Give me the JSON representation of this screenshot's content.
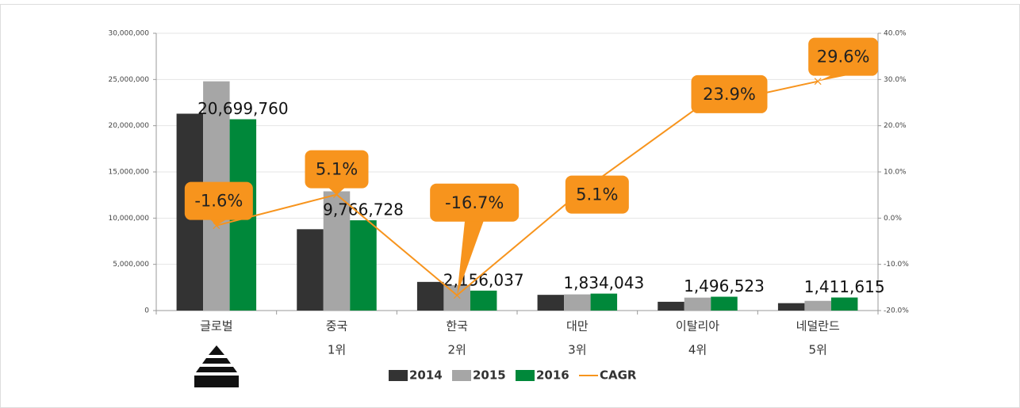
{
  "chart_data": {
    "type": "bar",
    "categories": [
      "글로벌",
      "중국",
      "한국",
      "대만",
      "이탈리아",
      "네덜란드"
    ],
    "ranks": [
      null,
      "1위",
      "2위",
      "3위",
      "4위",
      "5위"
    ],
    "series": [
      {
        "name": "2014",
        "color": "#333333",
        "values": [
          21300000,
          8800000,
          3100000,
          1700000,
          950000,
          800000
        ]
      },
      {
        "name": "2015",
        "color": "#a6a6a6",
        "values": [
          24800000,
          12900000,
          2750000,
          1750000,
          1400000,
          1050000
        ]
      },
      {
        "name": "2016",
        "color": "#00883a",
        "values": [
          20699760,
          9766728,
          2156037,
          1834043,
          1496523,
          1411615
        ],
        "value_labels": [
          "20,699,760",
          "9,766,728",
          "2,156,037",
          "1,834,043",
          "1,496,523",
          "1,411,615"
        ]
      },
      {
        "name": "CAGR",
        "type": "line",
        "axis": "y2",
        "color": "#f7941d",
        "values": [
          -1.6,
          5.1,
          -16.7,
          5.1,
          23.9,
          29.6
        ],
        "value_labels": [
          "-1.6%",
          "5.1%",
          "-16.7%",
          "5.1%",
          "23.9%",
          "29.6%"
        ]
      }
    ],
    "ylim": [
      0,
      30000000
    ],
    "yticks": [
      {
        "value": 0,
        "label": "0"
      },
      {
        "value": 5000000,
        "label": "5,000,000"
      },
      {
        "value": 10000000,
        "label": "10,000,000"
      },
      {
        "value": 15000000,
        "label": "15,000,000"
      },
      {
        "value": 20000000,
        "label": "20,000,000"
      },
      {
        "value": 25000000,
        "label": "25,000,000"
      },
      {
        "value": 30000000,
        "label": "30,000,000"
      }
    ],
    "y2lim": [
      -20,
      40
    ],
    "y2ticks": [
      {
        "value": -20,
        "label": "-20.0%"
      },
      {
        "value": -10,
        "label": "-10.0%"
      },
      {
        "value": 0,
        "label": "0.0%"
      },
      {
        "value": 10,
        "label": "10.0%"
      },
      {
        "value": 20,
        "label": "20.0%"
      },
      {
        "value": 30,
        "label": "30.0%"
      },
      {
        "value": 40,
        "label": "40.0%"
      }
    ],
    "grid": true,
    "legend": "bottom"
  }
}
